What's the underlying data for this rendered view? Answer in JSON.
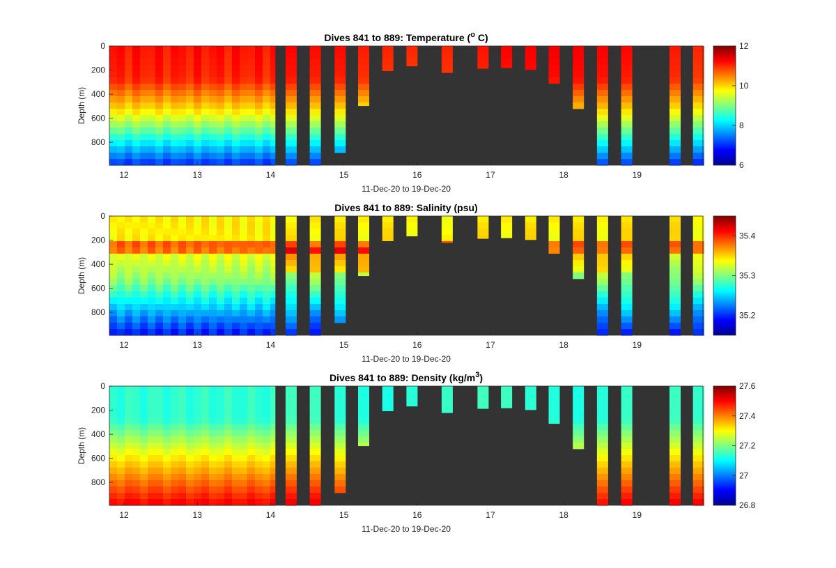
{
  "chart_data": [
    {
      "type": "heatmap",
      "title_text": "Dives 841 to 889: Temperature (",
      "title_sup": "o",
      "title_suffix": " C)",
      "xlabel": "11-Dec-20 to 19-Dec-20",
      "ylabel": "Depth (m)",
      "x_ticks": [
        "12",
        "13",
        "14",
        "15",
        "16",
        "17",
        "18",
        "19"
      ],
      "y_ticks": [
        "0",
        "200",
        "400",
        "600",
        "800"
      ],
      "xlim": [
        11.8,
        19.9
      ],
      "ylim": [
        0,
        990
      ],
      "colorbar": {
        "min": 6,
        "max": 12,
        "ticks": [
          "6",
          "8",
          "10",
          "12"
        ]
      },
      "background": "#333333",
      "profiles": [
        {
          "t": 14.28,
          "max": 990
        },
        {
          "t": 14.61,
          "max": 990
        },
        {
          "t": 14.95,
          "max": 885
        },
        {
          "t": 15.27,
          "max": 495
        },
        {
          "t": 15.6,
          "max": 205
        },
        {
          "t": 15.93,
          "max": 165
        },
        {
          "t": 16.41,
          "max": 220
        },
        {
          "t": 16.9,
          "max": 185
        },
        {
          "t": 17.22,
          "max": 180
        },
        {
          "t": 17.55,
          "max": 195
        },
        {
          "t": 17.87,
          "max": 310
        },
        {
          "t": 18.2,
          "max": 520
        },
        {
          "t": 18.53,
          "max": 990
        },
        {
          "t": 18.86,
          "max": 990
        },
        {
          "t": 19.52,
          "max": 990
        },
        {
          "t": 19.84,
          "max": 990
        }
      ]
    },
    {
      "type": "heatmap",
      "title_text": "Dives 841 to 889: Salinity (psu)",
      "title_sup": "",
      "title_suffix": "",
      "xlabel": "11-Dec-20 to 19-Dec-20",
      "ylabel": "Depth (m)",
      "x_ticks": [
        "12",
        "13",
        "14",
        "15",
        "16",
        "17",
        "18",
        "19"
      ],
      "y_ticks": [
        "0",
        "200",
        "400",
        "600",
        "800"
      ],
      "xlim": [
        11.8,
        19.9
      ],
      "ylim": [
        0,
        990
      ],
      "colorbar": {
        "min": 35.15,
        "max": 35.45,
        "ticks": [
          "35.2",
          "35.3",
          "35.4"
        ]
      },
      "background": "#333333",
      "profiles": [
        {
          "t": 14.28,
          "max": 990
        },
        {
          "t": 14.61,
          "max": 990
        },
        {
          "t": 14.95,
          "max": 885
        },
        {
          "t": 15.27,
          "max": 495
        },
        {
          "t": 15.6,
          "max": 205
        },
        {
          "t": 15.93,
          "max": 165
        },
        {
          "t": 16.41,
          "max": 220
        },
        {
          "t": 16.9,
          "max": 185
        },
        {
          "t": 17.22,
          "max": 180
        },
        {
          "t": 17.55,
          "max": 195
        },
        {
          "t": 17.87,
          "max": 310
        },
        {
          "t": 18.2,
          "max": 520
        },
        {
          "t": 18.53,
          "max": 990
        },
        {
          "t": 18.86,
          "max": 990
        },
        {
          "t": 19.52,
          "max": 990
        },
        {
          "t": 19.84,
          "max": 990
        }
      ]
    },
    {
      "type": "heatmap",
      "title_text": "Dives 841 to 889: Density (kg/m",
      "title_sup": "3",
      "title_suffix": ")",
      "xlabel": "11-Dec-20 to 19-Dec-20",
      "ylabel": "Depth (m)",
      "x_ticks": [
        "12",
        "13",
        "14",
        "15",
        "16",
        "17",
        "18",
        "19"
      ],
      "y_ticks": [
        "0",
        "200",
        "400",
        "600",
        "800"
      ],
      "xlim": [
        11.8,
        19.9
      ],
      "ylim": [
        0,
        990
      ],
      "colorbar": {
        "min": 26.8,
        "max": 27.6,
        "ticks": [
          "26.8",
          "27",
          "27.2",
          "27.4",
          "27.6"
        ]
      },
      "background": "#333333",
      "profiles": [
        {
          "t": 14.28,
          "max": 990
        },
        {
          "t": 14.61,
          "max": 990
        },
        {
          "t": 14.95,
          "max": 885
        },
        {
          "t": 15.27,
          "max": 495
        },
        {
          "t": 15.6,
          "max": 205
        },
        {
          "t": 15.93,
          "max": 165
        },
        {
          "t": 16.41,
          "max": 220
        },
        {
          "t": 16.9,
          "max": 185
        },
        {
          "t": 17.22,
          "max": 180
        },
        {
          "t": 17.55,
          "max": 195
        },
        {
          "t": 17.87,
          "max": 310
        },
        {
          "t": 18.2,
          "max": 520
        },
        {
          "t": 18.53,
          "max": 990
        },
        {
          "t": 18.86,
          "max": 990
        },
        {
          "t": 19.52,
          "max": 990
        },
        {
          "t": 19.84,
          "max": 990
        }
      ]
    }
  ]
}
